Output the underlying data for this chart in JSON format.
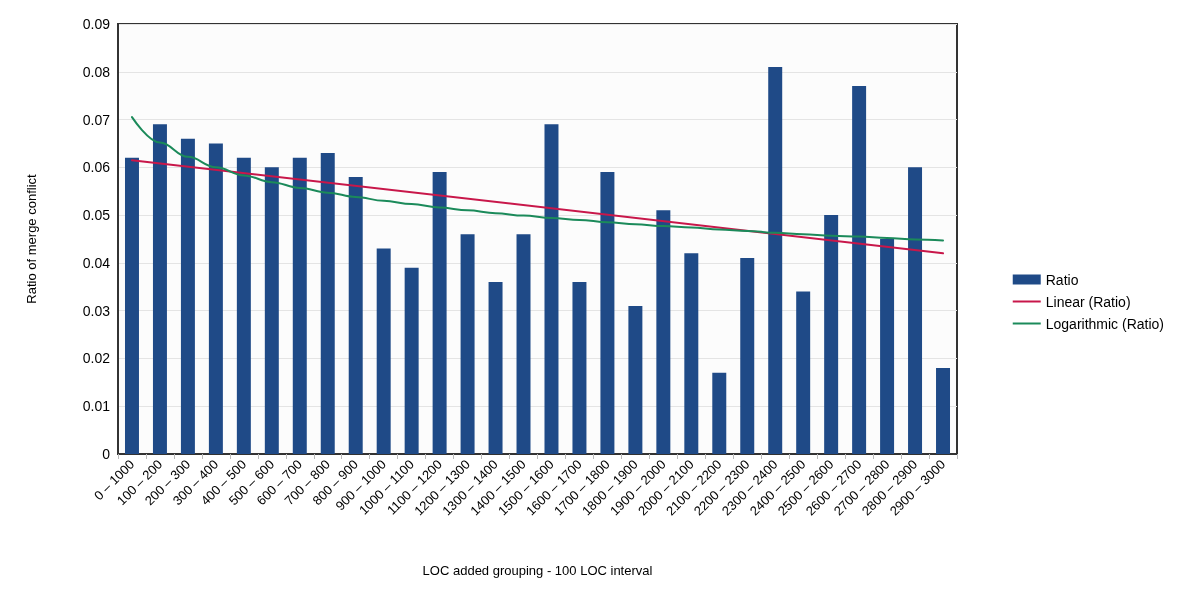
{
  "chart_data": {
    "type": "bar",
    "xlabel": "LOC added grouping - 100 LOC interval",
    "ylabel": "Ratio of merge conflict",
    "categories": [
      "0 – 1000",
      "100 – 200",
      "200 – 300",
      "300 – 400",
      "400 – 500",
      "500 – 600",
      "600 – 700",
      "700 – 800",
      "800 – 900",
      "900 – 1000",
      "1000 – 1100",
      "1100 – 1200",
      "1200 – 1300",
      "1300 – 1400",
      "1400 – 1500",
      "1500 – 1600",
      "1600 – 1700",
      "1700 – 1800",
      "1800 – 1900",
      "1900 – 2000",
      "2000 – 2100",
      "2100 – 2200",
      "2200 – 2300",
      "2300 – 2400",
      "2400 – 2500",
      "2500 – 2600",
      "2600 – 2700",
      "2700 – 2800",
      "2800 – 2900",
      "2900 – 3000"
    ],
    "series": [
      {
        "name": "Ratio",
        "color": "#1f4a87",
        "values": [
          0.062,
          0.069,
          0.066,
          0.065,
          0.062,
          0.06,
          0.062,
          0.063,
          0.058,
          0.043,
          0.039,
          0.059,
          0.046,
          0.036,
          0.046,
          0.069,
          0.036,
          0.059,
          0.031,
          0.051,
          0.042,
          0.017,
          0.041,
          0.081,
          0.034,
          0.05,
          0.077,
          0.045,
          0.06,
          0.018
        ]
      },
      {
        "name": "Linear (Ratio)",
        "type": "line",
        "color": "#c8174a",
        "x": [
          "0 – 1000",
          "2900 – 3000"
        ],
        "values": [
          0.0615,
          0.042
        ]
      },
      {
        "name": "Logarithmic (Ratio)",
        "type": "line",
        "color": "#1b8a5a",
        "values": [
          0.0705,
          0.0652,
          0.0622,
          0.06,
          0.0583,
          0.0569,
          0.0557,
          0.0547,
          0.0538,
          0.053,
          0.0523,
          0.0516,
          0.051,
          0.0504,
          0.0499,
          0.0494,
          0.049,
          0.0485,
          0.0481,
          0.0477,
          0.0474,
          0.047,
          0.0467,
          0.0463,
          0.046,
          0.0457,
          0.0455,
          0.0452,
          0.0449,
          0.0447
        ]
      }
    ],
    "ylim": [
      0,
      0.09
    ],
    "yticks": [
      0,
      0.01,
      0.02,
      0.03,
      0.04,
      0.05,
      0.06,
      0.07,
      0.08,
      0.09
    ],
    "grid": "y",
    "legend": "right",
    "marker": "none",
    "line_style": "solid"
  }
}
